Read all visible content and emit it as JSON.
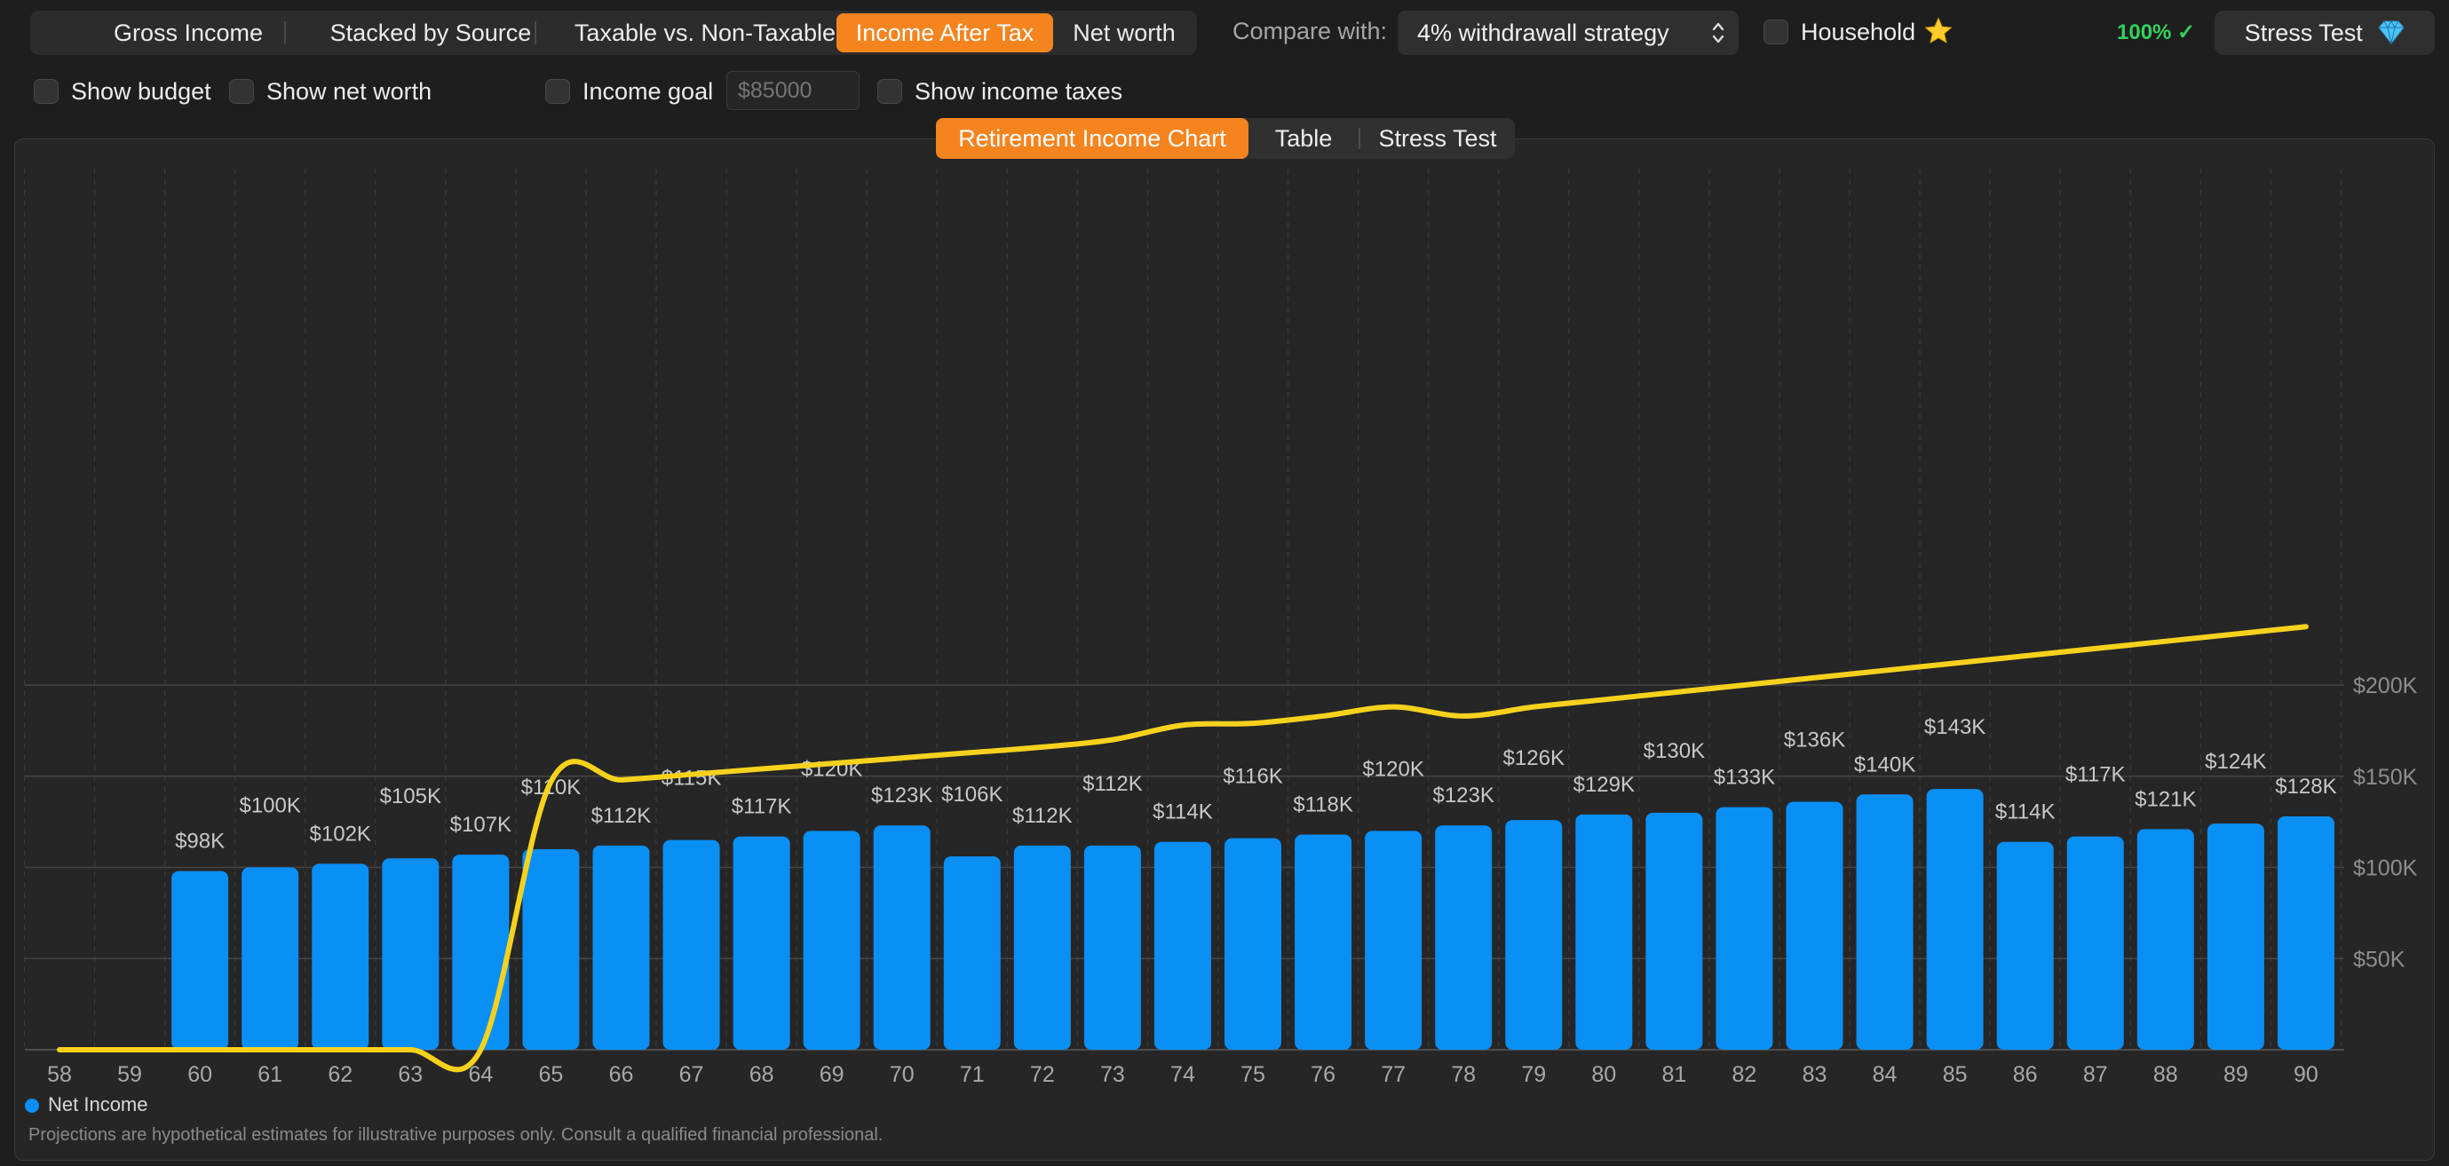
{
  "view_modes": [
    "Gross Income",
    "Stacked by Source",
    "Taxable vs. Non-Taxable",
    "Income After Tax",
    "Net worth"
  ],
  "active_view": "Income After Tax",
  "compare": {
    "label": "Compare with:",
    "value": "4% withdrawall strategy"
  },
  "household": {
    "label": "Household",
    "icon": "star-icon",
    "checked": false
  },
  "completeness": "100% ✓",
  "stress_test_button": {
    "label": "Stress Test",
    "icon": "gem-icon"
  },
  "options": {
    "show_budget": "Show budget",
    "show_net_worth": "Show net worth",
    "income_goal": "Income goal",
    "income_goal_placeholder": "$85000",
    "show_income_taxes": "Show income taxes"
  },
  "tabs": [
    "Retirement Income Chart",
    "Table",
    "Stress Test"
  ],
  "active_tab": "Retirement Income Chart",
  "legend": "Net Income",
  "disclaimer": "Projections are hypothetical estimates for illustrative purposes only. Consult a qualified financial professional.",
  "colors": {
    "accent": "#f5841f",
    "bar": "#0a8ff5",
    "line": "#f7d21c",
    "status_ok": "#33d15e"
  },
  "chart_data": {
    "type": "bar",
    "categories": [
      "58",
      "59",
      "60",
      "61",
      "62",
      "63",
      "64",
      "65",
      "66",
      "67",
      "68",
      "69",
      "70",
      "71",
      "72",
      "73",
      "74",
      "75",
      "76",
      "77",
      "78",
      "79",
      "80",
      "81",
      "82",
      "83",
      "84",
      "85",
      "86",
      "87",
      "88",
      "89",
      "90"
    ],
    "series": [
      {
        "name": "Net Income",
        "values": [
          0,
          0,
          98,
          100,
          102,
          105,
          107,
          110,
          112,
          115,
          117,
          120,
          123,
          106,
          112,
          112,
          114,
          116,
          118,
          120,
          123,
          126,
          129,
          130,
          133,
          136,
          140,
          143,
          114,
          117,
          121,
          124,
          128
        ]
      },
      {
        "values": [
          0,
          0,
          0,
          0,
          0,
          0,
          0,
          147,
          148,
          151,
          154,
          157,
          160,
          163,
          166,
          170,
          178,
          179,
          183,
          188,
          183,
          188,
          192,
          196,
          200,
          204,
          208,
          212,
          216,
          220,
          224,
          228,
          232
        ]
      }
    ],
    "data_labels": [
      "",
      "",
      "$98K",
      "$100K",
      "$102K",
      "$105K",
      "$107K",
      "$110K",
      "$112K",
      "$115K",
      "$117K",
      "$120K",
      "$123K",
      "$106K",
      "$112K",
      "$112K",
      "$114K",
      "$116K",
      "$118K",
      "$120K",
      "$123K",
      "$126K",
      "$129K",
      "$130K",
      "$133K",
      "$136K",
      "$140K",
      "$143K",
      "$114K",
      "$117K",
      "$121K",
      "$124K",
      "$128K"
    ],
    "y_ticks": [
      "$50K",
      "$100K",
      "$150K",
      "$200K"
    ],
    "y_tick_values": [
      50,
      100,
      150,
      200
    ],
    "ylim": [
      0,
      230
    ],
    "unit": "thousands USD",
    "grid": true,
    "legend_position": "bottom-left"
  }
}
